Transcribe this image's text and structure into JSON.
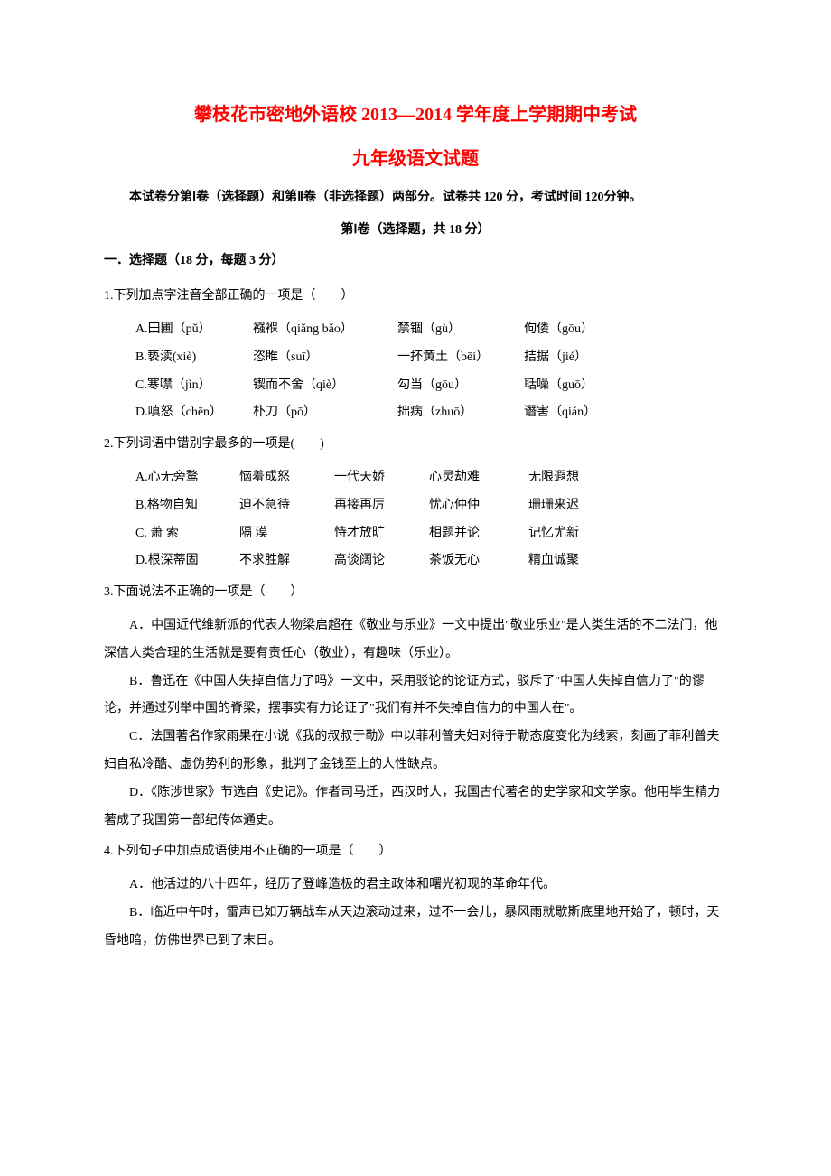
{
  "title": "攀枝花市密地外语校 2013—2014 学年度上学期期中考试",
  "subtitle": "九年级语文试题",
  "intro": "本试卷分第Ⅰ卷（选择题）和第Ⅱ卷（非选择题）两部分。试卷共 120 分，考试时间 120分钟。",
  "section1_header": "第Ⅰ卷（选择题，共 18 分）",
  "subsection1": "一．选择题（18 分，每题 3 分）",
  "q1": {
    "stem": "1.下列加点字注音全部正确的一项是（　　）",
    "opts": [
      {
        "label": "A.田圃（pǔ）",
        "c2": "襁褓（qiǎng bǎo）",
        "c3": "禁锢（gù）",
        "c4": "佝偻（gōu）"
      },
      {
        "label": "B.亵渎(xiè)",
        "c2": "恣睢（suī）",
        "c3": "一抔黄土（bēi）",
        "c4": "拮据（jié）"
      },
      {
        "label": "C.寒噤（jìn）",
        "c2": "锲而不舍（qiè）",
        "c3": "勾当（gōu）",
        "c4": "聒噪（guō）"
      },
      {
        "label": "D.嗔怒（chēn）",
        "c2": "朴刀（pō）",
        "c3": "拙病（zhuō）",
        "c4": "谮害（qián）"
      }
    ]
  },
  "q2": {
    "stem": "2.下列词语中错别字最多的一项是(　　)",
    "opts": [
      {
        "label": "A.心无旁鹜",
        "c2": "恼羞成怒",
        "c3": "一代天娇",
        "c4": "心灵劫难",
        "c5": "无限遐想"
      },
      {
        "label": "B.格物自知",
        "c2": "迫不急待",
        "c3": "再接再厉",
        "c4": "忧心仲仲",
        "c5": "珊珊来迟"
      },
      {
        "label": "C. 萧 索",
        "c2": "隔 漠",
        "c3": "恃才放旷",
        "c4": "相题并论",
        "c5": "记忆尤新"
      },
      {
        "label": "D.根深蒂固",
        "c2": "不求胜解",
        "c3": "高谈阔论",
        "c4": "茶饭无心",
        "c5": "精血诚聚"
      }
    ]
  },
  "q3": {
    "stem": "3.下面说法不正确的一项是（　　）",
    "paras": [
      "A．中国近代维新派的代表人物梁启超在《敬业与乐业》一文中提出\"敬业乐业\"是人类生活的不二法门，他深信人类合理的生活就是要有责任心（敬业），有趣味（乐业）。",
      "B．鲁迅在《中国人失掉自信力了吗》一文中，采用驳论的论证方式，驳斥了\"中国人失掉自信力了\"的谬论，并通过列举中国的脊梁，摆事实有力论证了\"我们有并不失掉自信力的中国人在\"。",
      "C．法国著名作家雨果在小说《我的叔叔于勒》中以菲利普夫妇对待于勒态度变化为线索，刻画了菲利普夫妇自私冷酷、虚伪势利的形象，批判了金钱至上的人性缺点。",
      "D．《陈涉世家》节选自《史记》。作者司马迁，西汉时人，我国古代著名的史学家和文学家。他用毕生精力著成了我国第一部纪传体通史。"
    ]
  },
  "q4": {
    "stem": "4.下列句子中加点成语使用不正确的一项是（　　）",
    "paras": [
      "A．他活过的八十四年，经历了登峰造极的君主政体和曙光初现的革命年代。",
      "B．临近中午时，雷声已如万辆战车从天边滚动过来，过不一会儿，暴风雨就歇斯底里地开始了，顿时，天昏地暗，仿佛世界已到了末日。"
    ]
  }
}
